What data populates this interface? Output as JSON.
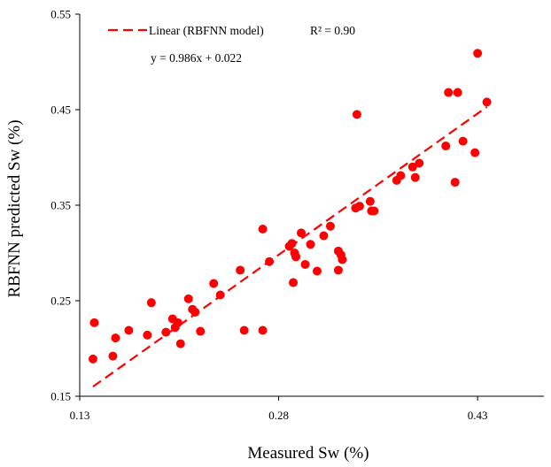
{
  "chart_data": {
    "type": "scatter",
    "xlabel": "Measured Sw (%)",
    "ylabel": "RBFNN predicted Sw (%)",
    "xlim": [
      0.13,
      0.48
    ],
    "ylim": [
      0.15,
      0.55
    ],
    "xticks": [
      "0.13",
      "0.28",
      "0.43"
    ],
    "yticks": [
      "0.15",
      "0.25",
      "0.35",
      "0.45",
      "0.55"
    ],
    "grid": false,
    "legend_position": "top-left",
    "series": [
      {
        "type": "scatter",
        "color": "#ff0000",
        "points": [
          [
            0.14,
            0.189
          ],
          [
            0.141,
            0.227
          ],
          [
            0.155,
            0.192
          ],
          [
            0.157,
            0.211
          ],
          [
            0.167,
            0.219
          ],
          [
            0.181,
            0.214
          ],
          [
            0.184,
            0.248
          ],
          [
            0.195,
            0.217
          ],
          [
            0.2,
            0.231
          ],
          [
            0.202,
            0.222
          ],
          [
            0.204,
            0.227
          ],
          [
            0.206,
            0.205
          ],
          [
            0.212,
            0.252
          ],
          [
            0.215,
            0.241
          ],
          [
            0.217,
            0.238
          ],
          [
            0.221,
            0.218
          ],
          [
            0.231,
            0.268
          ],
          [
            0.236,
            0.256
          ],
          [
            0.251,
            0.282
          ],
          [
            0.254,
            0.219
          ],
          [
            0.268,
            0.325
          ],
          [
            0.268,
            0.219
          ],
          [
            0.273,
            0.291
          ],
          [
            0.288,
            0.307
          ],
          [
            0.29,
            0.31
          ],
          [
            0.291,
            0.269
          ],
          [
            0.292,
            0.3
          ],
          [
            0.293,
            0.296
          ],
          [
            0.297,
            0.321
          ],
          [
            0.3,
            0.288
          ],
          [
            0.304,
            0.309
          ],
          [
            0.309,
            0.281
          ],
          [
            0.314,
            0.318
          ],
          [
            0.319,
            0.328
          ],
          [
            0.325,
            0.302
          ],
          [
            0.325,
            0.282
          ],
          [
            0.327,
            0.298
          ],
          [
            0.328,
            0.293
          ],
          [
            0.338,
            0.347
          ],
          [
            0.339,
            0.445
          ],
          [
            0.341,
            0.349
          ],
          [
            0.349,
            0.354
          ],
          [
            0.35,
            0.344
          ],
          [
            0.352,
            0.344
          ],
          [
            0.369,
            0.376
          ],
          [
            0.372,
            0.381
          ],
          [
            0.381,
            0.39
          ],
          [
            0.383,
            0.379
          ],
          [
            0.386,
            0.394
          ],
          [
            0.406,
            0.412
          ],
          [
            0.408,
            0.468
          ],
          [
            0.413,
            0.374
          ],
          [
            0.415,
            0.468
          ],
          [
            0.419,
            0.417
          ],
          [
            0.428,
            0.405
          ],
          [
            0.43,
            0.509
          ],
          [
            0.437,
            0.458
          ]
        ]
      },
      {
        "type": "line",
        "name": "Linear (RBFNN model)",
        "color": "#ff0000",
        "style": "dashed",
        "slope": 0.986,
        "intercept": 0.022,
        "x_range": [
          0.14,
          0.437
        ]
      }
    ],
    "annotations": {
      "r_squared": "R² = 0.90",
      "equation": "y = 0.986x + 0.022"
    }
  }
}
